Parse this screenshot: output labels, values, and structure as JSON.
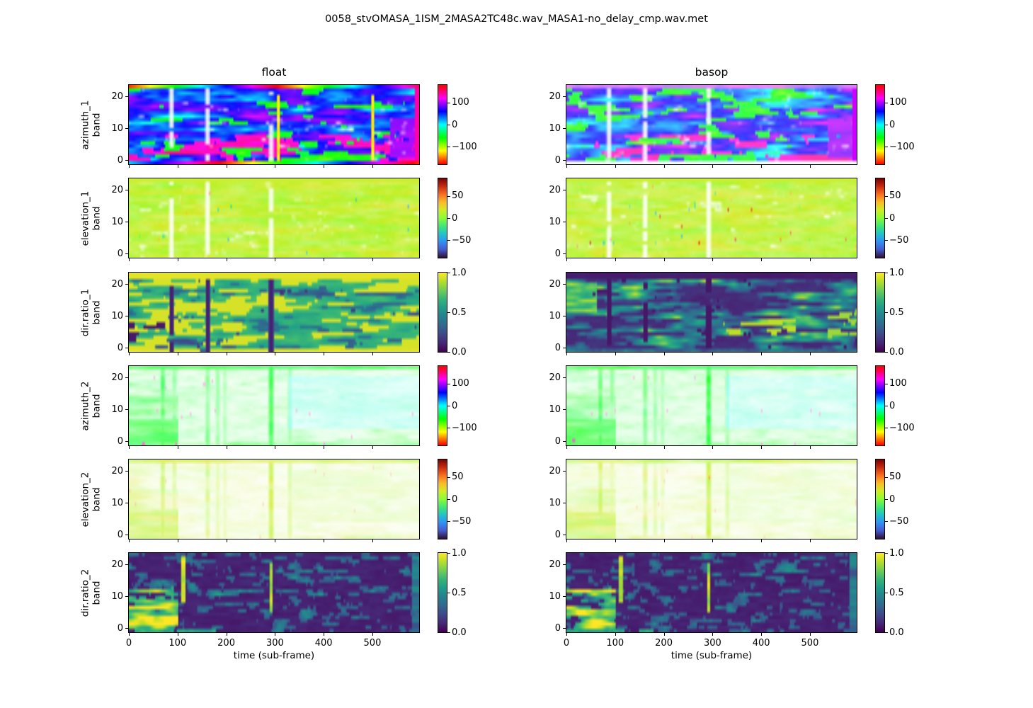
{
  "figure": {
    "title": "0058_stvOMASA_1ISM_2MASA2TC48c.wav_MASA1-no_delay_cmp.wav.met",
    "background": "#ffffff",
    "column_titles": [
      "float",
      "basop"
    ],
    "row_labels": [
      [
        "azimuth_1",
        "band"
      ],
      [
        "elevation_1",
        "band"
      ],
      [
        "dir.ratio_1",
        "band"
      ],
      [
        "azimuth_2",
        "band"
      ],
      [
        "elevation_2",
        "band"
      ],
      [
        "dir.ratio_2",
        "band"
      ]
    ],
    "x_axis": {
      "label": "time (sub-frame)",
      "ticks": [
        0,
        100,
        200,
        300,
        400,
        500
      ],
      "range": [
        0,
        595
      ]
    },
    "y_axis": {
      "ticks": [
        0,
        10,
        20
      ],
      "range": [
        0,
        24
      ]
    },
    "text_color": "#000000",
    "spine_color": "#000000"
  },
  "chart_data": [
    {
      "name": "azimuth_1",
      "column": "float",
      "type": "heatmap",
      "colormap": "hsv",
      "value_range": [
        -180,
        180
      ],
      "colorbar_ticks": [
        {
          "label": "100",
          "value": 100
        },
        {
          "label": "0",
          "value": 0
        },
        {
          "label": "−100",
          "value": -100
        }
      ],
      "x_range": [
        0,
        595
      ],
      "y_ticks": [
        0,
        10,
        20
      ],
      "description": "Azimuth of direction 1 per time/band. Mostly blue-violet (~+60deg) with pink/magenta patches in low bands, cyan regions, white low-energy holes, rainbow hue sweep along top and bottom band edges, yellow streaks near frames 305 and 500, purple block at right.",
      "gen": {
        "kind": "az1",
        "variant": "float",
        "seed": 1
      }
    },
    {
      "name": "azimuth_1",
      "column": "basop",
      "type": "heatmap",
      "colormap": "hsv",
      "value_range": [
        -180,
        180
      ],
      "colorbar_ticks": [
        {
          "label": "100",
          "value": 100
        },
        {
          "label": "0",
          "value": 0
        },
        {
          "label": "−100",
          "value": -100
        }
      ],
      "x_range": [
        0,
        595
      ],
      "y_ticks": [
        0,
        10,
        20
      ],
      "description": "Same azimuth pattern as float but paler (more white, lower energy), no saturated rainbow edge rows, violet block at right.",
      "gen": {
        "kind": "az1",
        "variant": "basop",
        "seed": 2
      }
    },
    {
      "name": "elevation_1",
      "column": "float",
      "type": "heatmap",
      "colormap": "turbo",
      "value_range": [
        -90,
        90
      ],
      "colorbar_ticks": [
        {
          "label": "50",
          "value": 50
        },
        {
          "label": "0",
          "value": 0
        },
        {
          "label": "−50",
          "value": -50
        }
      ],
      "x_range": [
        0,
        595
      ],
      "y_ticks": [
        0,
        10,
        20
      ],
      "description": "Elevation of direction 1: nearly uniform light yellow-green (~+10..20deg) with white holes and sparse cyan/orange speckles.",
      "gen": {
        "kind": "el1",
        "variant": "float",
        "seed": 3
      }
    },
    {
      "name": "elevation_1",
      "column": "basop",
      "type": "heatmap",
      "colormap": "turbo",
      "value_range": [
        -90,
        90
      ],
      "colorbar_ticks": [
        {
          "label": "50",
          "value": 50
        },
        {
          "label": "0",
          "value": 0
        },
        {
          "label": "−50",
          "value": -50
        }
      ],
      "x_range": [
        0,
        595
      ],
      "y_ticks": [
        0,
        10,
        20
      ],
      "description": "Same pale yellow-green elevation field as float with slightly more white.",
      "gen": {
        "kind": "el1",
        "variant": "basop",
        "seed": 4
      }
    },
    {
      "name": "dir.ratio_1",
      "column": "float",
      "type": "heatmap",
      "colormap": "viridis",
      "value_range": [
        0,
        1
      ],
      "colorbar_ticks": [
        {
          "label": "1.0",
          "value": 1
        },
        {
          "label": "0.5",
          "value": 0.5
        },
        {
          "label": "0.0",
          "value": 0
        }
      ],
      "x_range": [
        0,
        595
      ],
      "y_ticks": [
        0,
        10,
        20
      ],
      "description": "Direct-to-total ratio of direction 1: mostly high (yellow ~0.9) with green/teal mid-band texture, dark purple vertical streaks near frames 90 and 290, dark blobs lower-left.",
      "gen": {
        "kind": "dr1f",
        "variant": "float",
        "seed": 5
      }
    },
    {
      "name": "dir.ratio_1",
      "column": "basop",
      "type": "heatmap",
      "colormap": "viridis",
      "value_range": [
        0,
        1
      ],
      "colorbar_ticks": [
        {
          "label": "1.0",
          "value": 1
        },
        {
          "label": "0.5",
          "value": 0.5
        },
        {
          "label": "0.0",
          "value": 0
        }
      ],
      "x_range": [
        0,
        595
      ],
      "y_ticks": [
        0,
        10,
        20
      ],
      "description": "Ratio of direction 1 (basop): dark purple background with green/teal patches and yellow highlights; dark top rows.",
      "gen": {
        "kind": "dr1b",
        "variant": "basop",
        "seed": 6
      }
    },
    {
      "name": "azimuth_2",
      "column": "float",
      "type": "heatmap",
      "colormap": "hsv",
      "value_range": [
        -180,
        180
      ],
      "colorbar_ticks": [
        {
          "label": "100",
          "value": 100
        },
        {
          "label": "0",
          "value": 0
        },
        {
          "label": "−100",
          "value": -100
        }
      ],
      "x_range": [
        0,
        595
      ],
      "y_ticks": [
        0,
        10,
        20
      ],
      "description": "Azimuth of direction 2: mostly white (low energy) with green patches (~-55deg) strongest at left and in vertical streaks near frames 70, 160, 295; pale mint region on right half; faint pink speckles.",
      "gen": {
        "kind": "dir2ae",
        "variant": "az",
        "seed": 7
      }
    },
    {
      "name": "azimuth_2",
      "column": "basop",
      "type": "heatmap",
      "colormap": "hsv",
      "value_range": [
        -180,
        180
      ],
      "colorbar_ticks": [
        {
          "label": "100",
          "value": 100
        },
        {
          "label": "0",
          "value": 0
        },
        {
          "label": "−100",
          "value": -100
        }
      ],
      "x_range": [
        0,
        595
      ],
      "y_ticks": [
        0,
        10,
        20
      ],
      "description": "Same green-on-white azimuth_2 pattern as float column.",
      "gen": {
        "kind": "dir2ae",
        "variant": "az",
        "seed": 8
      }
    },
    {
      "name": "elevation_2",
      "column": "float",
      "type": "heatmap",
      "colormap": "turbo",
      "value_range": [
        -90,
        90
      ],
      "colorbar_ticks": [
        {
          "label": "50",
          "value": 50
        },
        {
          "label": "0",
          "value": 0
        },
        {
          "label": "−50",
          "value": -50
        }
      ],
      "x_range": [
        0,
        595
      ],
      "y_ticks": [
        0,
        10,
        20
      ],
      "description": "Elevation of direction 2: mostly white with pale yellow-green patches matching azimuth_2 activity.",
      "gen": {
        "kind": "dir2ae",
        "variant": "el",
        "seed": 9
      }
    },
    {
      "name": "elevation_2",
      "column": "basop",
      "type": "heatmap",
      "colormap": "turbo",
      "value_range": [
        -90,
        90
      ],
      "colorbar_ticks": [
        {
          "label": "50",
          "value": 50
        },
        {
          "label": "0",
          "value": 0
        },
        {
          "label": "−50",
          "value": -50
        }
      ],
      "x_range": [
        0,
        595
      ],
      "y_ticks": [
        0,
        10,
        20
      ],
      "description": "Same pale yellow-green elevation_2 pattern as float column.",
      "gen": {
        "kind": "dir2ae",
        "variant": "el",
        "seed": 10
      }
    },
    {
      "name": "dir.ratio_2",
      "column": "float",
      "type": "heatmap",
      "colormap": "viridis",
      "value_range": [
        0,
        1
      ],
      "colorbar_ticks": [
        {
          "label": "1.0",
          "value": 1
        },
        {
          "label": "0.5",
          "value": 0.5
        },
        {
          "label": "0.0",
          "value": 0
        }
      ],
      "x_range": [
        0,
        595
      ],
      "y_ticks": [
        0,
        10,
        20
      ],
      "description": "Ratio of direction 2: dark purple background with teal speckle, bright yellow blobs at left (frames 0-100) and yellow vertical streaks near frames 90 and 290.",
      "gen": {
        "kind": "dr2",
        "variant": "float",
        "seed": 11
      }
    },
    {
      "name": "dir.ratio_2",
      "column": "basop",
      "type": "heatmap",
      "colormap": "viridis",
      "value_range": [
        0,
        1
      ],
      "colorbar_ticks": [
        {
          "label": "1.0",
          "value": 1
        },
        {
          "label": "0.5",
          "value": 0.5
        },
        {
          "label": "0.0",
          "value": 0
        }
      ],
      "x_range": [
        0,
        595
      ],
      "y_ticks": [
        0,
        10,
        20
      ],
      "description": "Same dark-with-yellow-blobs ratio_2 pattern as float column.",
      "gen": {
        "kind": "dr2",
        "variant": "basop",
        "seed": 12
      }
    }
  ]
}
